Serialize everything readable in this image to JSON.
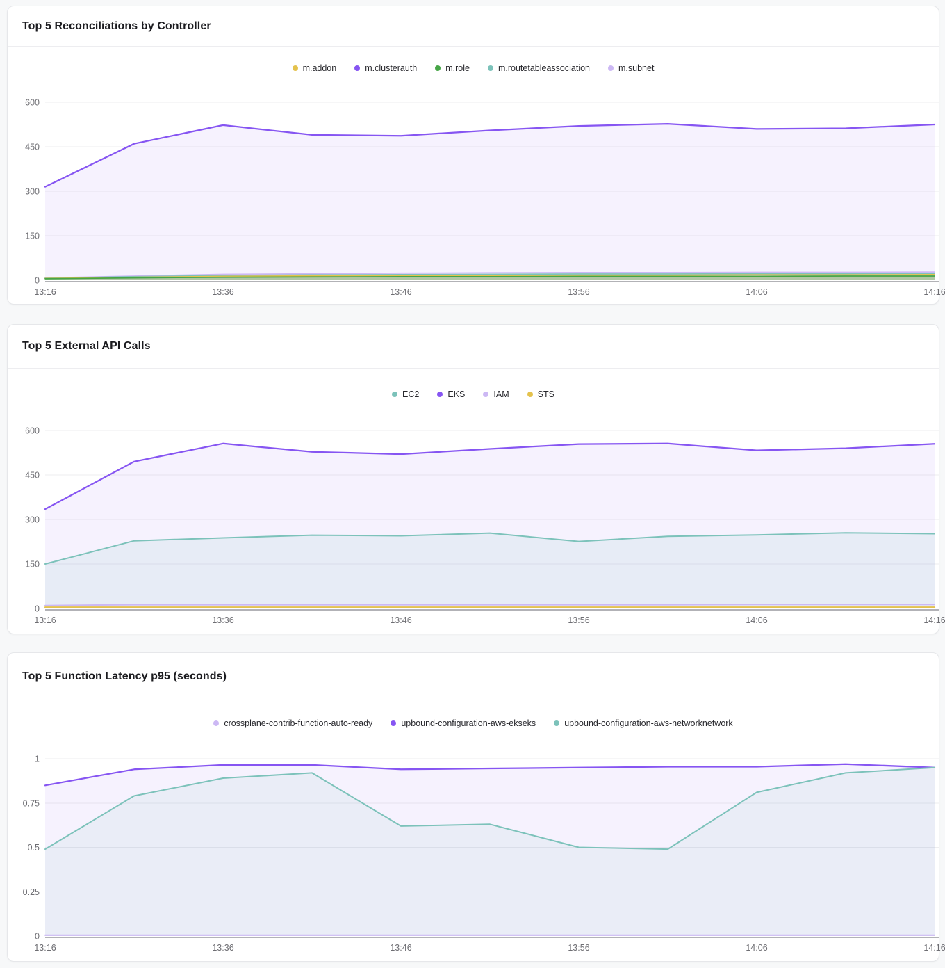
{
  "cards": [
    {
      "title": "Top 5 Reconciliations by Controller",
      "chart_data": {
        "type": "area",
        "title": "Top 5 Reconciliations by Controller",
        "x_tick_labels": [
          "13:16",
          "13:36",
          "13:46",
          "13:56",
          "14:06",
          "14:16"
        ],
        "yticks": [
          0,
          150,
          300,
          450,
          600
        ],
        "ylim": [
          0,
          600
        ],
        "legend_position": "top",
        "grid": true,
        "series": [
          {
            "name": "m.addon",
            "color": "#e4c24d",
            "fill_opacity": 0.25,
            "width": 1.75,
            "values": [
              6,
              10,
              13,
              15,
              16,
              16,
              17,
              17,
              18,
              18,
              19
            ]
          },
          {
            "name": "m.clusterauth",
            "color": "#8655f2",
            "fill_opacity": 0.08,
            "width": 2.25,
            "values": [
              315,
              460,
              523,
              490,
              487,
              505,
              520,
              527,
              510,
              512,
              525
            ]
          },
          {
            "name": "m.role",
            "color": "#46a546",
            "fill_opacity": 0.25,
            "width": 1.75,
            "values": [
              5,
              8,
              10,
              11,
              12,
              12,
              13,
              13,
              13,
              14,
              14
            ]
          },
          {
            "name": "m.routetableassociation",
            "color": "#7cc2ba",
            "fill_opacity": 0.25,
            "width": 1.75,
            "values": [
              7,
              12,
              16,
              18,
              19,
              20,
              21,
              21,
              22,
              22,
              23
            ]
          },
          {
            "name": "m.subnet",
            "color": "#ccb8f4",
            "fill_opacity": 0.3,
            "width": 1.75,
            "values": [
              8,
              14,
              20,
              22,
              24,
              25,
              26,
              26,
              27,
              27,
              28
            ]
          }
        ]
      }
    },
    {
      "title": "Top 5 External API Calls",
      "chart_data": {
        "type": "area",
        "title": "Top 5 External API Calls",
        "x_tick_labels": [
          "13:16",
          "13:36",
          "13:46",
          "13:56",
          "14:06",
          "14:16"
        ],
        "yticks": [
          0,
          150,
          300,
          450,
          600
        ],
        "ylim": [
          0,
          600
        ],
        "legend_position": "top",
        "grid": true,
        "series": [
          {
            "name": "EC2",
            "color": "#7cc2ba",
            "fill_opacity": 0.12,
            "width": 2,
            "values": [
              150,
              228,
              238,
              247,
              245,
              254,
              226,
              243,
              248,
              255,
              252
            ]
          },
          {
            "name": "EKS",
            "color": "#8655f2",
            "fill_opacity": 0.08,
            "width": 2.25,
            "values": [
              335,
              495,
              556,
              528,
              520,
              538,
              554,
              556,
              533,
              540,
              555
            ]
          },
          {
            "name": "IAM",
            "color": "#ccb8f4",
            "fill_opacity": 0.3,
            "width": 2,
            "values": [
              10,
              13,
              13,
              13,
              13,
              13,
              13,
              13,
              14,
              14,
              14
            ]
          },
          {
            "name": "STS",
            "color": "#e4c24d",
            "fill_opacity": 0.3,
            "width": 2.25,
            "values": [
              4,
              4,
              4,
              4,
              4,
              4,
              4,
              4,
              4,
              4,
              4
            ]
          }
        ]
      }
    },
    {
      "title": "Top 5 Function Latency p95 (seconds)",
      "chart_data": {
        "type": "area",
        "title": "Top 5 Function Latency p95 (seconds)",
        "x_tick_labels": [
          "13:16",
          "13:36",
          "13:46",
          "13:56",
          "14:06",
          "14:16"
        ],
        "yticks": [
          0,
          0.25,
          0.5,
          0.75,
          1
        ],
        "ylim": [
          0,
          1
        ],
        "legend_position": "top",
        "grid": true,
        "series": [
          {
            "name": "crossplane-contrib-function-auto-ready",
            "color": "#ccb8f4",
            "fill_opacity": 0.3,
            "width": 2,
            "values": [
              0.005,
              0.005,
              0.005,
              0.005,
              0.005,
              0.005,
              0.005,
              0.005,
              0.005,
              0.005,
              0.005
            ]
          },
          {
            "name": "upbound-configuration-aws-ekseks",
            "color": "#8655f2",
            "fill_opacity": 0.08,
            "width": 2.25,
            "values": [
              0.85,
              0.94,
              0.965,
              0.965,
              0.94,
              0.945,
              0.95,
              0.955,
              0.955,
              0.97,
              0.95
            ]
          },
          {
            "name": "upbound-configuration-aws-networknetwork",
            "color": "#7cc2ba",
            "fill_opacity": 0.1,
            "width": 2,
            "values": [
              0.49,
              0.79,
              0.89,
              0.92,
              0.62,
              0.63,
              0.5,
              0.49,
              0.81,
              0.92,
              0.95
            ]
          }
        ]
      }
    }
  ]
}
